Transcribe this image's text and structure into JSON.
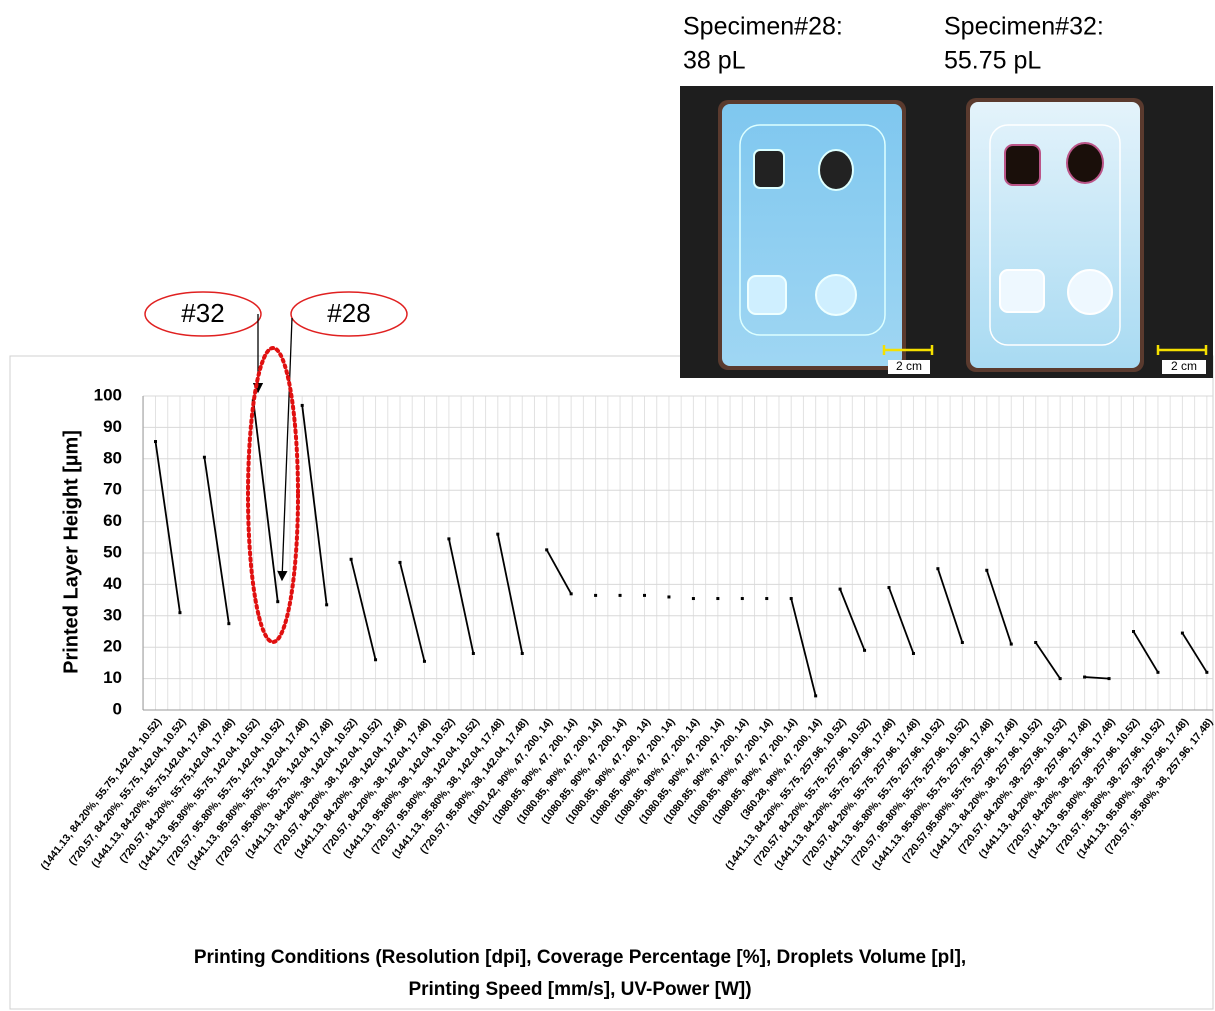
{
  "chart_data": {
    "type": "line",
    "y_label": "Printed Layer Height [µm]",
    "x_label": [
      "Printing Conditions (Resolution [dpi], Coverage Percentage [%], Droplets Volume [pl],",
      "Printing Speed [mm/s], UV-Power [W])"
    ],
    "ylim": [
      0,
      100
    ],
    "yticks": [
      0,
      10,
      20,
      30,
      40,
      50,
      60,
      70,
      80,
      90,
      100
    ],
    "grid": true,
    "color": "#000000",
    "annotations": [
      "#32",
      "#28"
    ],
    "photo_labels": [
      [
        "Specimen#28:",
        "38 pL"
      ],
      [
        "Specimen#32:",
        "55.75 pL"
      ]
    ],
    "scale_bars": [
      "2 cm",
      "2 cm"
    ],
    "groups": [
      {
        "categories": [
          "(1441.13, 84.20%, 55.75, 142.04, 10.52)",
          "(720.57, 84.20%, 55.75, 142.04, 10.52)"
        ],
        "values": [
          85.5,
          31
        ]
      },
      {
        "categories": [
          "(1441.13, 84.20%, 55.75,142.04, 17.48)",
          "(720.57, 84.20%, 55.75,142.04, 17.48)"
        ],
        "values": [
          80.5,
          27.5
        ]
      },
      {
        "categories": [
          "(1441.13, 95.80%, 55.75, 142.04, 10.52)",
          "(720.57, 95.80%, 55.75, 142.04, 10.52)"
        ],
        "values": [
          98.5,
          34.5
        ]
      },
      {
        "categories": [
          "(1441.13, 95.80%, 55.75, 142.04, 17.48)",
          "(720.57, 95.80%, 55.75, 142.04, 17.48)"
        ],
        "values": [
          97,
          33.5
        ]
      },
      {
        "categories": [
          "(1441.13, 84.20%, 38, 142.04, 10.52)",
          "(720.57, 84.20%, 38, 142.04, 10.52)"
        ],
        "values": [
          48,
          16
        ]
      },
      {
        "categories": [
          "(1441.13, 84.20%, 38, 142.04, 17.48)",
          "(720.57, 84.20%, 38, 142.04, 17.48)"
        ],
        "values": [
          47,
          15.5
        ]
      },
      {
        "categories": [
          "(1441.13, 95.80%, 38, 142.04, 10.52)",
          "(720.57, 95.80%, 38, 142.04, 10.52)"
        ],
        "values": [
          54.5,
          18
        ]
      },
      {
        "categories": [
          "(1441.13, 95.80%, 38, 142.04, 17.48)",
          "(720.57, 95.80%, 38, 142.04, 17.48)"
        ],
        "values": [
          56,
          18
        ]
      },
      {
        "categories": [
          "(1801.42, 90%, 47, 200, 14)",
          "(1080.85, 90%, 47, 200, 14)"
        ],
        "values": [
          51,
          37
        ]
      },
      {
        "categories": [
          "(1080.85, 90%, 47, 200, 14)"
        ],
        "values": [
          36.5
        ]
      },
      {
        "categories": [
          "(1080.85, 90%, 47, 200, 14)"
        ],
        "values": [
          36.5
        ]
      },
      {
        "categories": [
          "(1080.85, 90%, 47, 200, 14)"
        ],
        "values": [
          36.5
        ]
      },
      {
        "categories": [
          "(1080.85, 90%, 47, 200, 14)"
        ],
        "values": [
          36
        ]
      },
      {
        "categories": [
          "(1080.85, 90%, 47, 200, 14)"
        ],
        "values": [
          35.5
        ]
      },
      {
        "categories": [
          "(1080.85, 90%, 47, 200, 14)"
        ],
        "values": [
          35.5
        ]
      },
      {
        "categories": [
          "(1080.85, 90%, 47, 200, 14)"
        ],
        "values": [
          35.5
        ]
      },
      {
        "categories": [
          "(1080.85, 90%, 47, 200, 14)"
        ],
        "values": [
          35.5
        ]
      },
      {
        "categories": [
          "(1080.85, 90%, 47, 200, 14)",
          "(360.28, 90%, 47, 200, 14)"
        ],
        "values": [
          35.5,
          4.5
        ]
      },
      {
        "categories": [
          "(1441.13, 84.20%, 55.75, 257.96, 10.52)",
          "(720.57, 84.20%, 55.75, 257.96, 10.52)"
        ],
        "values": [
          38.5,
          19
        ]
      },
      {
        "categories": [
          "(1441.13, 84.20%, 55.75, 257.96, 17.48)",
          "(720.57, 84.20%, 55.75, 257.96, 17.48)"
        ],
        "values": [
          39,
          18
        ]
      },
      {
        "categories": [
          "(1441.13, 95.80%, 55.75, 257.96, 10.52)",
          "(720.57, 95.80%, 55.75, 257.96, 10.52)"
        ],
        "values": [
          45,
          21.5
        ]
      },
      {
        "categories": [
          "(1441.13, 95.80%, 55.75, 257.96, 17.48)",
          "(720.57,95.80%, 55.75, 257.96, 17.48)"
        ],
        "values": [
          44.5,
          21
        ]
      },
      {
        "categories": [
          "(1441.13, 84.20%, 38, 257.96, 10.52)",
          "(720.57, 84.20%, 38, 257.96, 10.52)"
        ],
        "values": [
          21.5,
          10
        ]
      },
      {
        "categories": [
          "(1441.13, 84.20%, 38, 257.96, 17.48)",
          "(720.57, 84.20%, 38, 257.96, 17.48)"
        ],
        "values": [
          10.5,
          10
        ]
      },
      {
        "categories": [
          "(1441.13, 95.80%, 38, 257.96, 10.52)",
          "(720.57, 95.80%, 38, 257.96, 10.52)"
        ],
        "values": [
          25,
          12
        ]
      },
      {
        "categories": [
          "(1441.13, 95.80%, 38, 257.96, 17.48)",
          "(720.57, 95.80%, 38, 257.96, 17.48)"
        ],
        "values": [
          24.5,
          12
        ]
      }
    ]
  }
}
